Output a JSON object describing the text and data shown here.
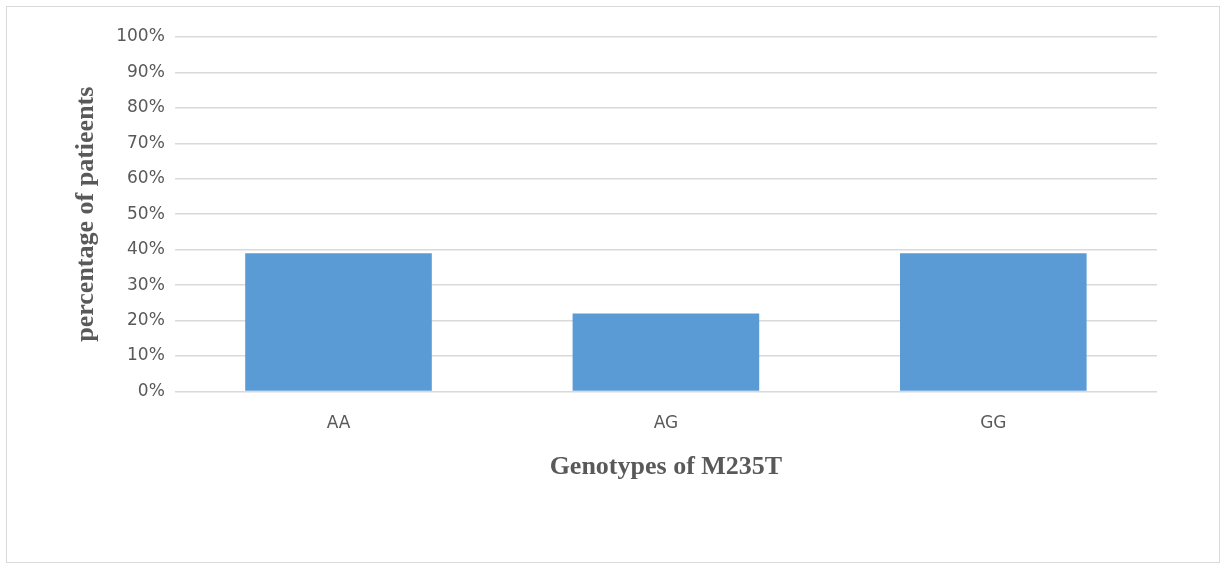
{
  "chart_data": {
    "type": "bar",
    "xlabel": "Genotypes of M235T",
    "ylabel": "percentage of patieents",
    "categories": [
      "AA",
      "AG",
      "GG"
    ],
    "values": [
      39,
      22,
      39
    ],
    "color": "#5b9bd5",
    "ylim": [
      0,
      100
    ],
    "yticks": [
      {
        "value": 0,
        "label": "0%"
      },
      {
        "value": 10,
        "label": "10%"
      },
      {
        "value": 20,
        "label": "20%"
      },
      {
        "value": 30,
        "label": "30%"
      },
      {
        "value": 40,
        "label": "40%"
      },
      {
        "value": 50,
        "label": "50%"
      },
      {
        "value": 60,
        "label": "60%"
      },
      {
        "value": 70,
        "label": "70%"
      },
      {
        "value": 80,
        "label": "80%"
      },
      {
        "value": 90,
        "label": "90%"
      },
      {
        "value": 100,
        "label": "100%"
      }
    ],
    "grid": "y"
  }
}
